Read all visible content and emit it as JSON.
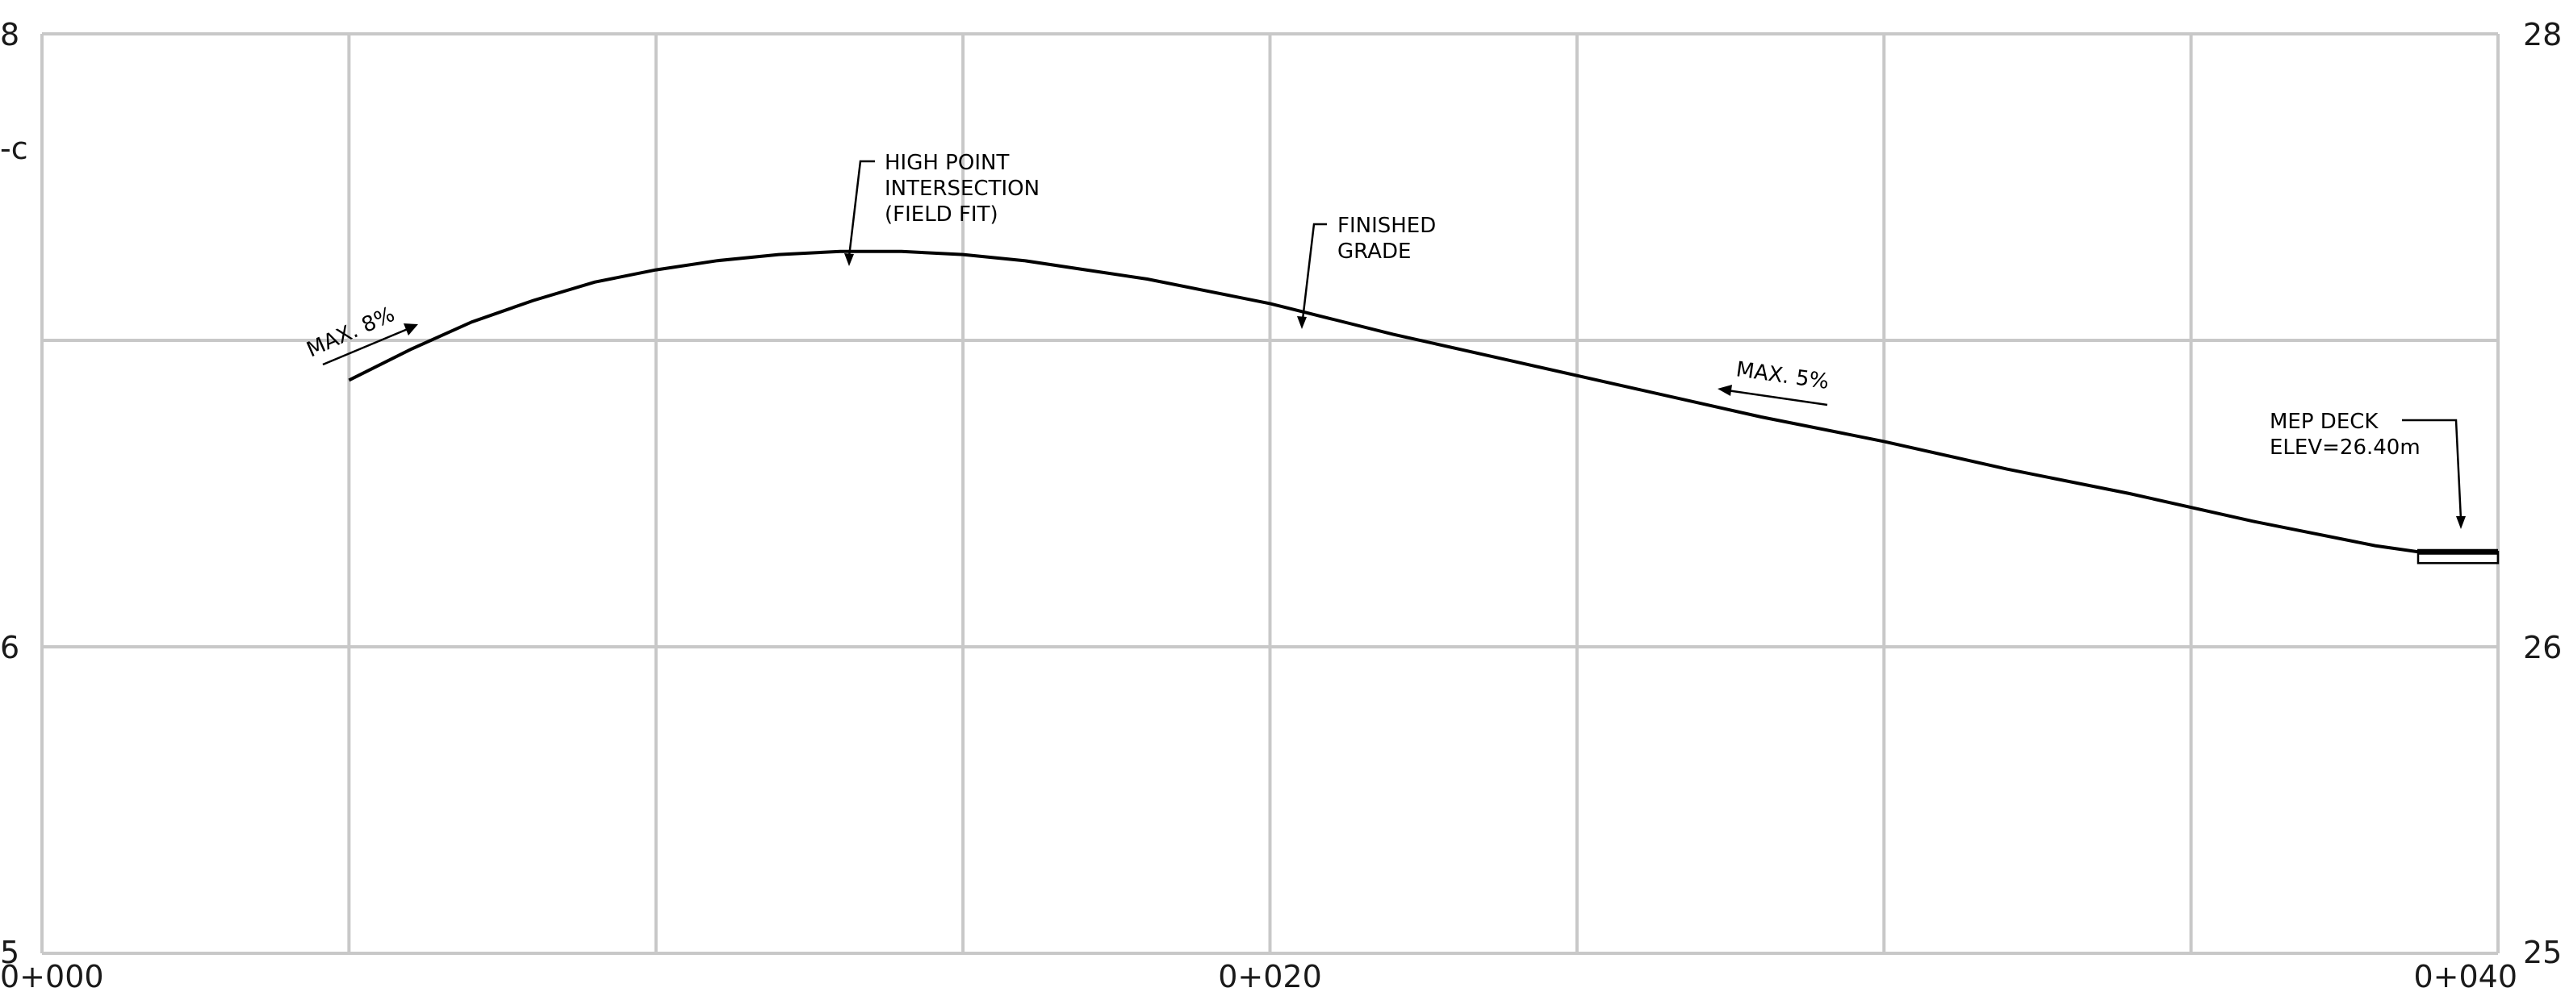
{
  "chart_data": {
    "type": "line",
    "x_axis_ticks": [
      "0+000",
      "0+020",
      "0+040"
    ],
    "y_axis_left_ticks": [
      "8",
      "6",
      "5"
    ],
    "y_axis_right_ticks": [
      "28",
      "26",
      "25"
    ],
    "left_edge_fragment": "-c",
    "xlim": [
      0,
      40
    ],
    "ylim": [
      25,
      28
    ],
    "grid": true,
    "series": [
      {
        "x": [
          5.0,
          6.0,
          7.0,
          8.0,
          9.0,
          10.0,
          11.0,
          12.0,
          13.0,
          13.5,
          14.0,
          15.0,
          16.0,
          17.0,
          18.0,
          19.0,
          20.0,
          21.0,
          22.0,
          24.0,
          26.0,
          28.0,
          30.0,
          32.0,
          34.0,
          36.0,
          38.0,
          38.7,
          39.0,
          40.0
        ],
        "y": [
          26.87,
          26.97,
          27.06,
          27.13,
          27.19,
          27.23,
          27.26,
          27.28,
          27.29,
          27.29,
          27.29,
          27.28,
          27.26,
          27.23,
          27.2,
          27.16,
          27.12,
          27.07,
          27.02,
          26.93,
          26.84,
          26.75,
          26.67,
          26.58,
          26.5,
          26.41,
          26.33,
          26.31,
          26.31,
          26.31
        ]
      }
    ],
    "slope_labels": [
      "MAX. 8%",
      "MAX. 5%"
    ],
    "annotations": {
      "high_point": [
        "HIGH POINT",
        "INTERSECTION",
        "(FIELD FIT)"
      ],
      "finished_grade": [
        "FINISHED",
        "GRADE"
      ],
      "mep_deck": [
        "MEP DECK",
        "ELEV=26.40m"
      ]
    }
  }
}
